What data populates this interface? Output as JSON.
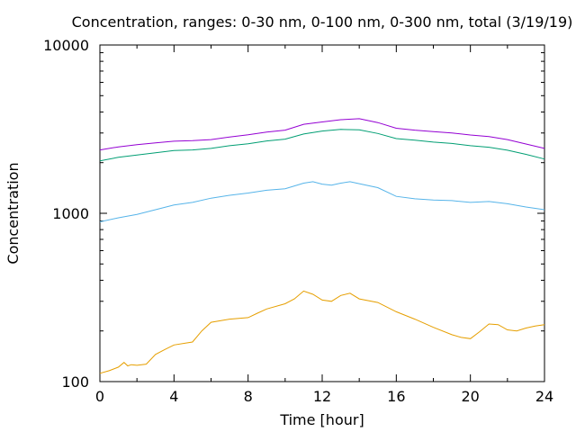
{
  "chart_data": {
    "type": "line",
    "title": "Concentration, ranges: 0-30 nm, 0-100 nm, 0-300 nm, total (3/19/19)",
    "xlabel": "Time [hour]",
    "ylabel": "Concentration",
    "xlim": [
      0,
      24
    ],
    "ylim": [
      100,
      10000
    ],
    "yscale": "log",
    "grid": false,
    "xticks": [
      0,
      4,
      8,
      12,
      16,
      20,
      24
    ],
    "xtick_labels": [
      "0",
      "4",
      "8",
      "12",
      "16",
      "20",
      "24"
    ],
    "yticks": [
      100,
      1000,
      10000
    ],
    "ytick_labels": [
      "100",
      "1000",
      "10000"
    ],
    "series": [
      {
        "color": "#e69f00",
        "x": [
          0,
          0.5,
          1,
          1.3,
          1.5,
          1.7,
          2,
          2.5,
          3,
          3.5,
          4,
          5,
          5.5,
          6,
          7,
          8,
          8.5,
          9,
          10,
          10.5,
          11,
          11.5,
          12,
          12.5,
          13,
          13.5,
          14,
          15,
          16,
          17,
          18,
          19,
          19.5,
          20,
          20.5,
          21,
          21.5,
          22,
          22.5,
          23,
          23.5,
          24
        ],
        "y": [
          112,
          116,
          122,
          130,
          124,
          126,
          125,
          127,
          145,
          155,
          165,
          172,
          200,
          225,
          235,
          240,
          255,
          270,
          290,
          310,
          345,
          330,
          305,
          300,
          325,
          335,
          310,
          295,
          260,
          235,
          210,
          190,
          183,
          180,
          198,
          220,
          218,
          203,
          200,
          208,
          214,
          218
        ]
      },
      {
        "color": "#56b4e9",
        "x": [
          0,
          1,
          2,
          3,
          4,
          5,
          6,
          7,
          8,
          9,
          10,
          11,
          11.5,
          12,
          12.5,
          13,
          13.5,
          14,
          15,
          16,
          17,
          18,
          19,
          20,
          21,
          22,
          23,
          24
        ],
        "y": [
          890,
          940,
          985,
          1050,
          1120,
          1160,
          1230,
          1280,
          1320,
          1370,
          1400,
          1510,
          1540,
          1490,
          1470,
          1510,
          1540,
          1500,
          1420,
          1260,
          1220,
          1200,
          1190,
          1160,
          1175,
          1140,
          1090,
          1050
        ]
      },
      {
        "color": "#009e73",
        "x": [
          0,
          1,
          2,
          3,
          4,
          5,
          6,
          7,
          8,
          9,
          10,
          11,
          12,
          13,
          14,
          15,
          16,
          17,
          18,
          19,
          20,
          21,
          22,
          23,
          24
        ],
        "y": [
          2050,
          2150,
          2220,
          2290,
          2360,
          2380,
          2430,
          2520,
          2590,
          2690,
          2760,
          2960,
          3080,
          3150,
          3130,
          2980,
          2780,
          2720,
          2650,
          2600,
          2520,
          2470,
          2370,
          2240,
          2100
        ]
      },
      {
        "color": "#9400d3",
        "x": [
          0,
          1,
          2,
          3,
          4,
          5,
          6,
          7,
          8,
          9,
          10,
          11,
          12,
          13,
          14,
          15,
          16,
          17,
          18,
          19,
          20,
          21,
          22,
          23,
          24
        ],
        "y": [
          2380,
          2480,
          2560,
          2620,
          2680,
          2700,
          2740,
          2840,
          2930,
          3040,
          3120,
          3380,
          3490,
          3600,
          3650,
          3460,
          3200,
          3120,
          3060,
          3000,
          2920,
          2860,
          2740,
          2580,
          2430
        ]
      }
    ]
  }
}
